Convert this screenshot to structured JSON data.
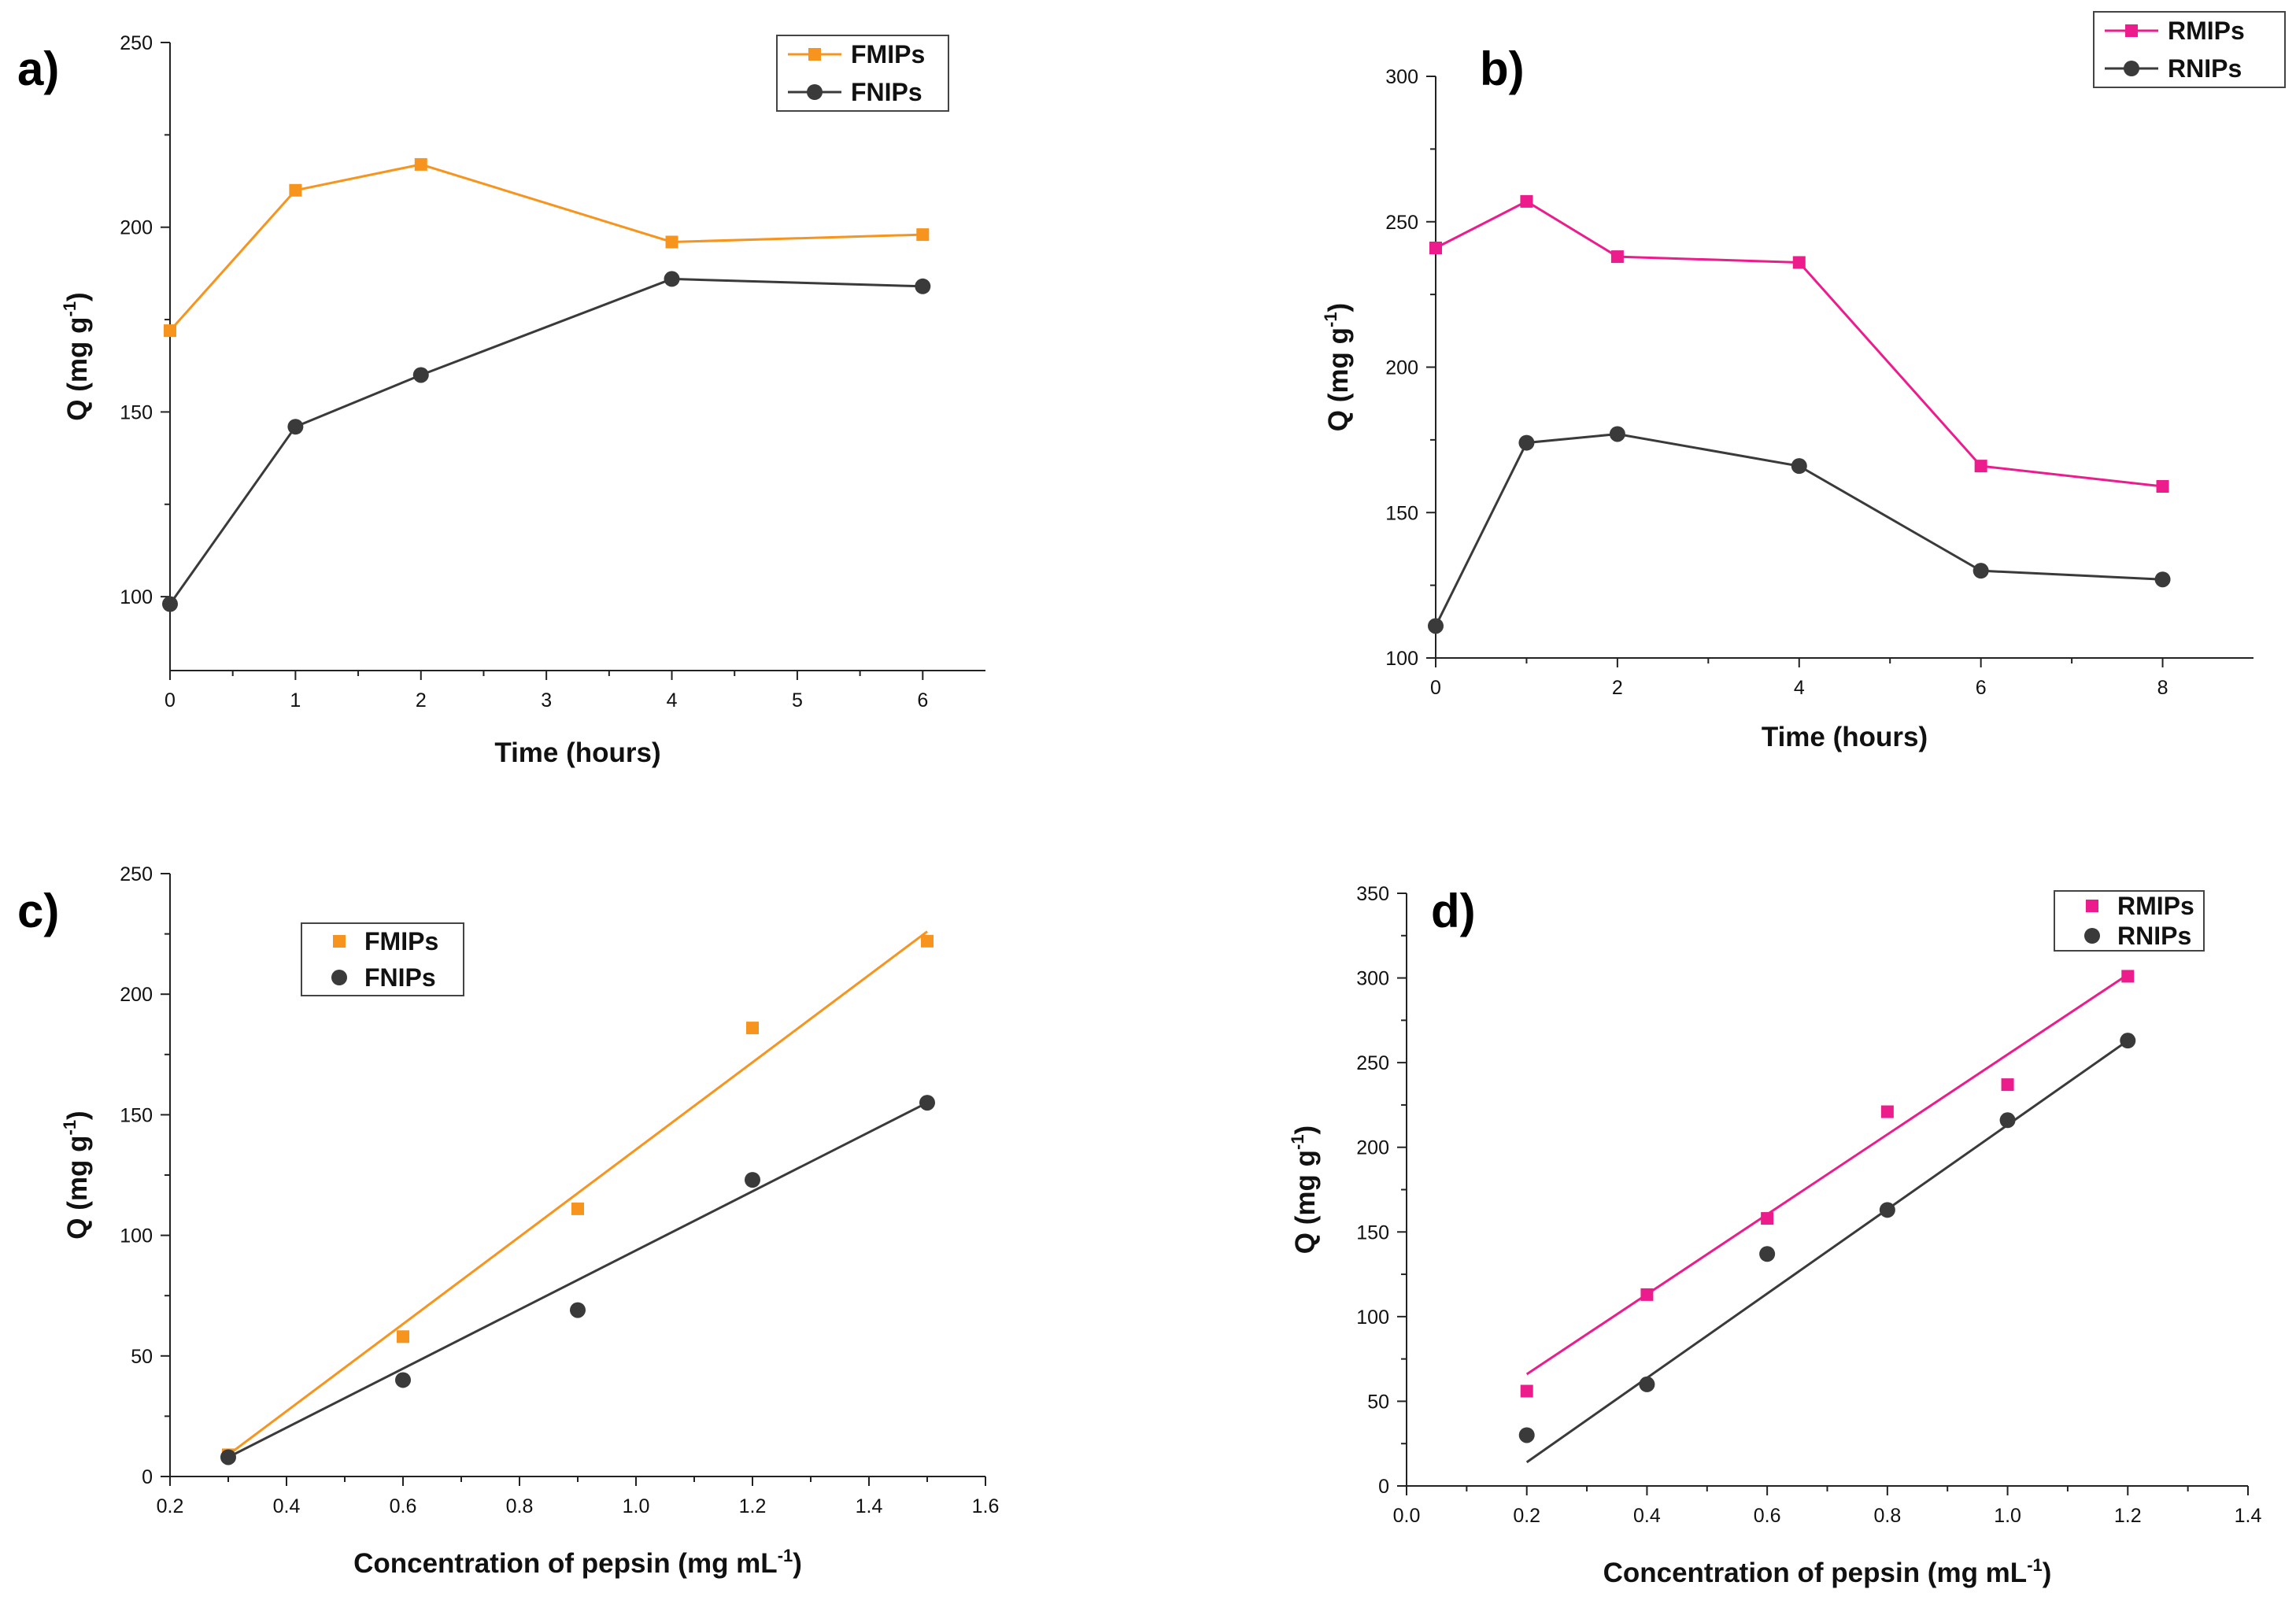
{
  "chart_data": [
    {
      "panel": "a)",
      "type": "line",
      "xlabel": "Time (hours)",
      "ylabel": "Q (mg g-1)",
      "ylabel_main": "Q (mg g",
      "ylabel_sup": "-1",
      "ylabel_close": ")",
      "xlim": [
        0,
        6.5
      ],
      "ylim": [
        80,
        250
      ],
      "xticks": [
        0,
        1,
        2,
        3,
        4,
        5,
        6
      ],
      "yticks": [
        100,
        150,
        200,
        250
      ],
      "legend_position": "top-right",
      "series": [
        {
          "name": "FMIPs",
          "marker": "square",
          "color": "#f7941d",
          "x": [
            0,
            1,
            2,
            4,
            6
          ],
          "y": [
            172,
            210,
            217,
            196,
            198
          ]
        },
        {
          "name": "FNIPs",
          "marker": "circle",
          "color": "#3a3a3a",
          "x": [
            0,
            1,
            2,
            4,
            6
          ],
          "y": [
            98,
            146,
            160,
            186,
            184
          ]
        }
      ]
    },
    {
      "panel": "b)",
      "type": "line",
      "xlabel": "Time (hours)",
      "ylabel": "Q (mg g-1)",
      "ylabel_main": "Q (mg g",
      "ylabel_sup": "-1",
      "ylabel_close": ")",
      "xlim": [
        0,
        9
      ],
      "ylim": [
        100,
        300
      ],
      "xticks": [
        0,
        2,
        4,
        6,
        8
      ],
      "yticks": [
        100,
        150,
        200,
        250,
        300
      ],
      "legend_position": "top-right",
      "series": [
        {
          "name": "RMIPs",
          "marker": "square",
          "color": "#ec1c8c",
          "x": [
            0,
            1,
            2,
            4,
            6,
            8
          ],
          "y": [
            241,
            257,
            238,
            236,
            166,
            159
          ]
        },
        {
          "name": "RNIPs",
          "marker": "circle",
          "color": "#3a3a3a",
          "x": [
            0,
            1,
            2,
            4,
            6,
            8
          ],
          "y": [
            111,
            174,
            177,
            166,
            130,
            127
          ]
        }
      ]
    },
    {
      "panel": "c)",
      "type": "scatter",
      "xlabel": "Concentration of pepsin (mg mL-1)",
      "xlabel_main": "Concentration of pepsin (mg mL",
      "xlabel_sup": "-1",
      "xlabel_close": ")",
      "ylabel": "Q (mg g-1)",
      "ylabel_main": "Q (mg g",
      "ylabel_sup": "-1",
      "ylabel_close": ")",
      "xlim": [
        0.2,
        1.6
      ],
      "ylim": [
        0,
        250
      ],
      "xticks": [
        "0.2",
        "0.4",
        "0.6",
        "0.8",
        "1.0",
        "1.2",
        "1.4",
        "1.6"
      ],
      "yticks": [
        0,
        50,
        100,
        150,
        200,
        250
      ],
      "legend_position": "upper-left",
      "series": [
        {
          "name": "FMIPs",
          "marker": "square",
          "color": "#f7941d",
          "x": [
            0.3,
            0.6,
            0.9,
            1.2,
            1.5
          ],
          "y": [
            9,
            58,
            111,
            186,
            222
          ],
          "fit": [
            [
              0.3,
              9
            ],
            [
              1.5,
              226
            ]
          ]
        },
        {
          "name": "FNIPs",
          "marker": "circle",
          "color": "#3a3a3a",
          "x": [
            0.3,
            0.6,
            0.9,
            1.2,
            1.5
          ],
          "y": [
            8,
            40,
            69,
            123,
            155
          ],
          "fit": [
            [
              0.3,
              8
            ],
            [
              1.5,
              155
            ]
          ]
        }
      ]
    },
    {
      "panel": "d)",
      "type": "scatter",
      "xlabel": "Concentration of pepsin (mg mL-1)",
      "xlabel_main": "Concentration of pepsin (mg mL",
      "xlabel_sup": "-1",
      "xlabel_close": ")",
      "ylabel": "Q (mg g-1)",
      "ylabel_main": "Q (mg g",
      "ylabel_sup": "-1",
      "ylabel_close": ")",
      "xlim": [
        0.0,
        1.4
      ],
      "ylim": [
        0,
        350
      ],
      "xticks": [
        "0.0",
        "0.2",
        "0.4",
        "0.6",
        "0.8",
        "1.0",
        "1.2",
        "1.4"
      ],
      "yticks": [
        0,
        50,
        100,
        150,
        200,
        250,
        300,
        350
      ],
      "legend_position": "top-right",
      "series": [
        {
          "name": "RMIPs",
          "marker": "square",
          "color": "#ec1c8c",
          "x": [
            0.2,
            0.4,
            0.6,
            0.8,
            1.0,
            1.2
          ],
          "y": [
            56,
            113,
            158,
            221,
            237,
            301
          ],
          "fit": [
            [
              0.2,
              66
            ],
            [
              1.2,
              302
            ]
          ]
        },
        {
          "name": "RNIPs",
          "marker": "circle",
          "color": "#3a3a3a",
          "x": [
            0.2,
            0.4,
            0.6,
            0.8,
            1.0,
            1.2
          ],
          "y": [
            30,
            60,
            137,
            163,
            216,
            263
          ],
          "fit": [
            [
              0.2,
              14
            ],
            [
              1.2,
              263
            ]
          ]
        }
      ]
    }
  ]
}
